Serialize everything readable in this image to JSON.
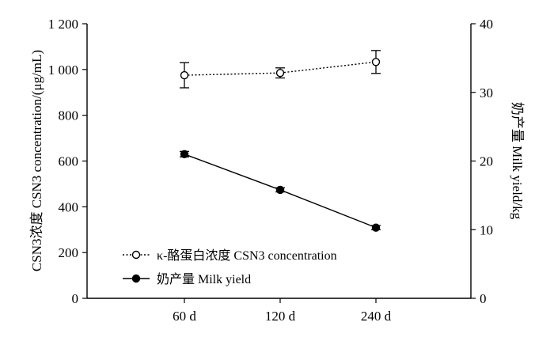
{
  "chart_data": {
    "type": "line",
    "categories": [
      "60 d",
      "120 d",
      "240 d"
    ],
    "y_left": {
      "label": "CSN3浓度 CSN3 concentration/(μg/mL)",
      "range": [
        0,
        1200
      ],
      "ticks": [
        0,
        200,
        400,
        600,
        800,
        1000,
        1200
      ],
      "tick_labels": [
        "0",
        "200",
        "400",
        "600",
        "800",
        "1 000",
        "1 200"
      ]
    },
    "y_right": {
      "label": "奶产量 Milk yield/kg",
      "range": [
        0,
        40
      ],
      "ticks": [
        0,
        10,
        20,
        30,
        40
      ],
      "tick_labels": [
        "0",
        "10",
        "20",
        "30",
        "40"
      ]
    },
    "series": [
      {
        "name": "κ-酪蛋白浓度 CSN3 concentration",
        "axis": "left",
        "style": "dotted",
        "marker": "open-circle",
        "values": [
          975,
          985,
          1033
        ],
        "errors": [
          55,
          22,
          50
        ]
      },
      {
        "name": "奶产量 Milk yield",
        "axis": "right",
        "style": "solid",
        "marker": "filled-circle",
        "values": [
          21.0,
          15.8,
          10.3
        ],
        "errors": [
          0.4,
          0.3,
          0.3
        ]
      }
    ],
    "legend_position": "bottom-left",
    "grid": false
  }
}
